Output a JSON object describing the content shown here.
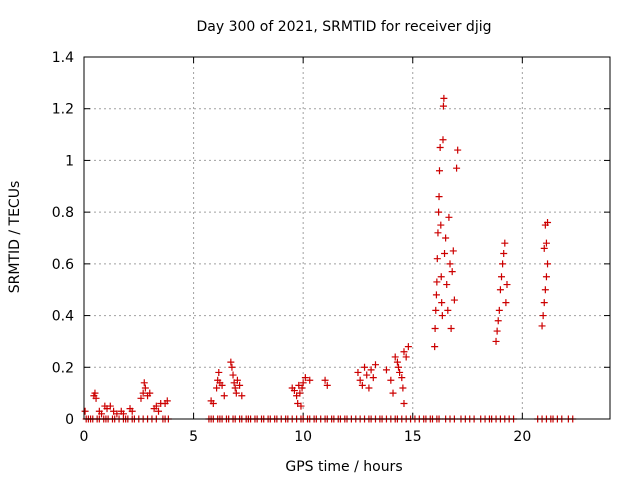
{
  "chart_data": {
    "type": "scatter",
    "title": "Day 300 of 2021, SRMTID for receiver djig",
    "xlabel": "GPS time / hours",
    "ylabel": "SRMTID / TECUs",
    "xlim": [
      0,
      24
    ],
    "ylim": [
      0,
      1.4
    ],
    "x_ticks": [
      0,
      5,
      10,
      15,
      20
    ],
    "y_ticks": [
      0,
      0.2,
      0.4,
      0.6,
      0.8,
      1,
      1.2,
      1.4
    ],
    "y_tick_labels": [
      "0",
      "0.2",
      "0.4",
      "0.6",
      "0.8",
      "1",
      "1.2",
      "1.4"
    ],
    "grid": true,
    "marker": "+",
    "color": "#cc0000",
    "series": [
      {
        "name": "SRMTID",
        "points": [
          [
            0.05,
            0.03
          ],
          [
            0.45,
            0.09
          ],
          [
            0.5,
            0.1
          ],
          [
            0.55,
            0.08
          ],
          [
            0.7,
            0.03
          ],
          [
            0.8,
            0.02
          ],
          [
            0.95,
            0.05
          ],
          [
            1.05,
            0.04
          ],
          [
            1.2,
            0.05
          ],
          [
            1.35,
            0.03
          ],
          [
            1.5,
            0.02
          ],
          [
            1.7,
            0.03
          ],
          [
            1.8,
            0.02
          ],
          [
            2.1,
            0.04
          ],
          [
            2.2,
            0.03
          ],
          [
            2.6,
            0.08
          ],
          [
            2.7,
            0.1
          ],
          [
            2.75,
            0.14
          ],
          [
            2.8,
            0.12
          ],
          [
            2.9,
            0.09
          ],
          [
            3.0,
            0.1
          ],
          [
            3.2,
            0.04
          ],
          [
            3.3,
            0.05
          ],
          [
            3.4,
            0.03
          ],
          [
            3.5,
            0.06
          ],
          [
            3.7,
            0.06
          ],
          [
            3.8,
            0.07
          ],
          [
            5.8,
            0.07
          ],
          [
            5.9,
            0.06
          ],
          [
            6.05,
            0.12
          ],
          [
            6.1,
            0.15
          ],
          [
            6.15,
            0.18
          ],
          [
            6.2,
            0.14
          ],
          [
            6.3,
            0.13
          ],
          [
            6.4,
            0.09
          ],
          [
            6.7,
            0.22
          ],
          [
            6.75,
            0.2
          ],
          [
            6.8,
            0.17
          ],
          [
            6.85,
            0.14
          ],
          [
            6.9,
            0.12
          ],
          [
            6.95,
            0.1
          ],
          [
            7.0,
            0.15
          ],
          [
            7.1,
            0.13
          ],
          [
            7.2,
            0.09
          ],
          [
            9.5,
            0.12
          ],
          [
            9.6,
            0.11
          ],
          [
            9.7,
            0.09
          ],
          [
            9.75,
            0.06
          ],
          [
            9.8,
            0.13
          ],
          [
            9.85,
            0.1
          ],
          [
            9.9,
            0.05
          ],
          [
            9.95,
            0.12
          ],
          [
            10.0,
            0.14
          ],
          [
            10.1,
            0.16
          ],
          [
            10.3,
            0.15
          ],
          [
            11.0,
            0.15
          ],
          [
            11.1,
            0.13
          ],
          [
            12.5,
            0.18
          ],
          [
            12.6,
            0.15
          ],
          [
            12.7,
            0.13
          ],
          [
            12.8,
            0.2
          ],
          [
            12.9,
            0.17
          ],
          [
            13.0,
            0.12
          ],
          [
            13.1,
            0.19
          ],
          [
            13.2,
            0.16
          ],
          [
            13.3,
            0.21
          ],
          [
            13.8,
            0.19
          ],
          [
            14.0,
            0.15
          ],
          [
            14.1,
            0.1
          ],
          [
            14.2,
            0.24
          ],
          [
            14.3,
            0.22
          ],
          [
            14.35,
            0.2
          ],
          [
            14.4,
            0.18
          ],
          [
            14.5,
            0.16
          ],
          [
            14.55,
            0.12
          ],
          [
            14.6,
            0.26
          ],
          [
            14.7,
            0.24
          ],
          [
            14.8,
            0.28
          ],
          [
            14.6,
            0.06
          ],
          [
            16.0,
            0.28
          ],
          [
            16.02,
            0.35
          ],
          [
            16.05,
            0.42
          ],
          [
            16.08,
            0.48
          ],
          [
            16.1,
            0.53
          ],
          [
            16.12,
            0.62
          ],
          [
            16.15,
            0.72
          ],
          [
            16.18,
            0.8
          ],
          [
            16.2,
            0.86
          ],
          [
            16.22,
            0.96
          ],
          [
            16.25,
            1.05
          ],
          [
            16.28,
            0.75
          ],
          [
            16.3,
            0.55
          ],
          [
            16.32,
            0.45
          ],
          [
            16.35,
            0.4
          ],
          [
            16.38,
            1.08
          ],
          [
            16.4,
            1.21
          ],
          [
            16.42,
            1.24
          ],
          [
            16.45,
            0.64
          ],
          [
            16.5,
            0.7
          ],
          [
            16.55,
            0.52
          ],
          [
            16.6,
            0.42
          ],
          [
            16.65,
            0.78
          ],
          [
            16.7,
            0.6
          ],
          [
            16.75,
            0.35
          ],
          [
            16.8,
            0.57
          ],
          [
            16.85,
            0.65
          ],
          [
            16.9,
            0.46
          ],
          [
            17.0,
            0.97
          ],
          [
            17.05,
            1.04
          ],
          [
            18.8,
            0.3
          ],
          [
            18.85,
            0.34
          ],
          [
            18.9,
            0.38
          ],
          [
            18.95,
            0.42
          ],
          [
            19.0,
            0.5
          ],
          [
            19.05,
            0.55
          ],
          [
            19.1,
            0.6
          ],
          [
            19.15,
            0.64
          ],
          [
            19.2,
            0.68
          ],
          [
            19.25,
            0.45
          ],
          [
            19.3,
            0.52
          ],
          [
            20.9,
            0.36
          ],
          [
            20.95,
            0.4
          ],
          [
            21.0,
            0.45
          ],
          [
            21.05,
            0.5
          ],
          [
            21.1,
            0.55
          ],
          [
            21.15,
            0.6
          ],
          [
            21.0,
            0.66
          ],
          [
            21.1,
            0.68
          ],
          [
            21.05,
            0.75
          ],
          [
            21.15,
            0.76
          ]
        ],
        "zero_points_x": [
          0.1,
          0.2,
          0.3,
          0.4,
          0.6,
          0.7,
          0.9,
          1.0,
          1.1,
          1.3,
          1.4,
          1.6,
          1.8,
          1.9,
          2.0,
          2.2,
          2.3,
          2.5,
          2.7,
          2.9,
          3.1,
          3.3,
          3.6,
          3.7,
          3.85,
          5.7,
          5.8,
          5.9,
          6.1,
          6.2,
          6.3,
          6.5,
          6.6,
          6.8,
          6.9,
          7.1,
          7.2,
          7.4,
          7.5,
          7.6,
          7.8,
          7.9,
          8.1,
          8.2,
          8.4,
          8.5,
          8.7,
          8.8,
          9.0,
          9.2,
          9.3,
          9.5,
          9.7,
          9.9,
          10.0,
          10.2,
          10.3,
          10.5,
          10.6,
          10.8,
          11.0,
          11.1,
          11.3,
          11.4,
          11.6,
          11.7,
          11.9,
          12.0,
          12.2,
          12.4,
          12.6,
          12.8,
          13.0,
          13.1,
          13.3,
          13.5,
          13.6,
          13.8,
          14.0,
          14.2,
          14.3,
          14.5,
          14.7,
          14.9,
          15.1,
          15.3,
          15.5,
          15.6,
          15.8,
          15.9,
          16.1,
          16.2,
          16.5,
          16.7,
          16.9,
          17.2,
          17.4,
          17.6,
          17.8,
          18.1,
          18.3,
          18.5,
          18.6,
          18.8,
          19.0,
          19.2,
          19.4,
          19.6,
          20.7,
          20.9,
          21.1,
          21.3,
          21.4,
          21.6,
          21.8,
          22.1,
          22.3
        ]
      }
    ]
  }
}
